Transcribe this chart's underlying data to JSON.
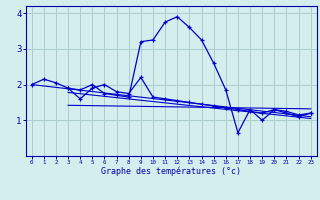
{
  "xlabel": "Graphe des températures (°c)",
  "bg_color": "#d4eeee",
  "grid_color": "#aacccc",
  "line_color": "#0000cc",
  "axis_color": "#0000aa",
  "xlim": [
    -0.5,
    23.5
  ],
  "ylim": [
    0,
    4.2
  ],
  "yticks": [
    1,
    2,
    3,
    4
  ],
  "xtick_labels": [
    "0",
    "1",
    "2",
    "3",
    "4",
    "5",
    "6",
    "7",
    "8",
    "9",
    "10",
    "11",
    "12",
    "13",
    "14",
    "15",
    "16",
    "17",
    "18",
    "19",
    "20",
    "21",
    "22",
    "23"
  ],
  "series1_x": [
    0,
    1,
    2,
    3,
    4,
    5,
    6,
    7,
    8,
    9,
    10,
    11,
    12,
    13,
    14,
    15,
    16,
    17,
    18,
    19,
    20,
    21,
    22,
    23
  ],
  "series1_y": [
    2.0,
    2.15,
    2.05,
    1.9,
    1.85,
    2.0,
    1.75,
    1.7,
    1.65,
    3.2,
    3.25,
    3.75,
    3.9,
    3.6,
    3.25,
    2.6,
    1.85,
    0.65,
    1.3,
    1.0,
    1.3,
    1.2,
    1.1,
    1.2
  ],
  "series2_x": [
    3,
    4,
    5,
    6,
    7,
    8,
    9,
    10,
    11,
    12,
    13,
    14,
    15,
    16,
    17,
    18,
    19,
    20,
    21,
    22,
    23
  ],
  "series2_y": [
    1.9,
    1.6,
    1.9,
    2.0,
    1.8,
    1.75,
    2.2,
    1.65,
    1.6,
    1.55,
    1.5,
    1.45,
    1.4,
    1.35,
    1.3,
    1.25,
    1.2,
    1.3,
    1.25,
    1.15,
    1.2
  ],
  "trend1": {
    "x": [
      0,
      23
    ],
    "y": [
      2.0,
      1.1
    ]
  },
  "trend2": {
    "x": [
      3,
      23
    ],
    "y": [
      1.78,
      1.05
    ]
  },
  "trend3": {
    "x": [
      3,
      23
    ],
    "y": [
      1.42,
      1.32
    ]
  }
}
